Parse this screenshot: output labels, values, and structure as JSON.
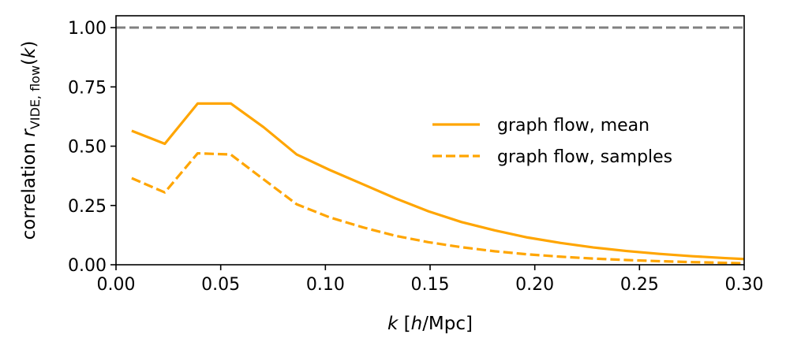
{
  "chart_data": {
    "type": "line",
    "title": "",
    "xlabel": {
      "var": "k",
      "open": " [",
      "unit_var": "h",
      "unit_rest": "/Mpc]"
    },
    "ylabel": {
      "prefix": "correlation ",
      "var": "r",
      "sub": "VIDE, flow",
      "suffix_open": "(",
      "arg": "k",
      "suffix_close": ")"
    },
    "xlim": [
      0.0,
      0.3
    ],
    "ylim": [
      0.0,
      1.05
    ],
    "xticks": [
      0.0,
      0.05,
      0.1,
      0.15,
      0.2,
      0.25,
      0.3
    ],
    "xtick_labels": [
      "0.00",
      "0.05",
      "0.10",
      "0.15",
      "0.20",
      "0.25",
      "0.30"
    ],
    "yticks": [
      0.0,
      0.25,
      0.5,
      0.75,
      1.0
    ],
    "ytick_labels": [
      "0.00",
      "0.25",
      "0.50",
      "0.75",
      "1.00"
    ],
    "reference_line": {
      "y": 1.0,
      "color": "#808080",
      "style": "dashed"
    },
    "series": [
      {
        "name": "graph flow, mean",
        "style": "solid",
        "color": "#FFA500",
        "x": [
          0.0075,
          0.0233,
          0.039,
          0.0548,
          0.0705,
          0.0863,
          0.102,
          0.1178,
          0.1335,
          0.1493,
          0.165,
          0.1808,
          0.1965,
          0.2123,
          0.228,
          0.2438,
          0.2595,
          0.2753,
          0.291,
          0.3
        ],
        "y": [
          0.565,
          0.51,
          0.68,
          0.68,
          0.58,
          0.465,
          0.4,
          0.34,
          0.28,
          0.225,
          0.18,
          0.145,
          0.115,
          0.092,
          0.073,
          0.058,
          0.046,
          0.036,
          0.028,
          0.024
        ]
      },
      {
        "name": "graph flow, samples",
        "style": "dashed",
        "color": "#FFA500",
        "x": [
          0.0075,
          0.0233,
          0.039,
          0.0548,
          0.0705,
          0.0863,
          0.102,
          0.1178,
          0.1335,
          0.1493,
          0.165,
          0.1808,
          0.1965,
          0.2123,
          0.228,
          0.2438,
          0.2595,
          0.2753,
          0.291,
          0.3
        ],
        "y": [
          0.365,
          0.305,
          0.47,
          0.465,
          0.36,
          0.255,
          0.2,
          0.158,
          0.122,
          0.095,
          0.074,
          0.057,
          0.044,
          0.034,
          0.026,
          0.02,
          0.015,
          0.011,
          0.008,
          0.006
        ]
      }
    ],
    "legend": {
      "placement": "center-right",
      "entries": [
        "graph flow, mean",
        "graph flow, samples"
      ]
    },
    "grid": false
  }
}
